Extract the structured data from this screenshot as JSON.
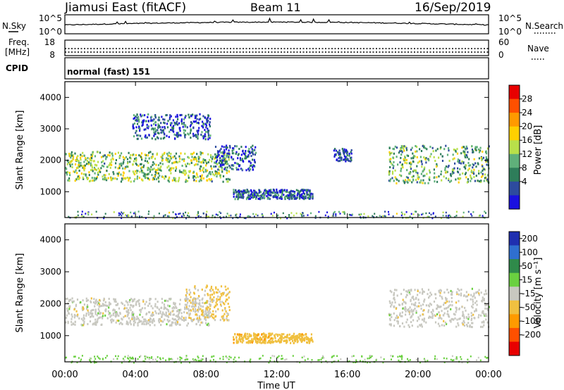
{
  "header": {
    "title_left": "Jiamusi East (fitACF)",
    "title_center": "Beam 11",
    "title_right": "16/Sep/2019"
  },
  "nsky": {
    "label": "N.Sky",
    "ticks_left": [
      "10^5",
      "10^0"
    ],
    "ticks_right": [
      "10^5",
      "10^0"
    ],
    "right_label": "N.Search"
  },
  "freq": {
    "label_line1": "Freq.",
    "label_line2": "[MHz]",
    "ticks_left": [
      "18",
      "8"
    ],
    "ticks_right": [
      "60",
      "0"
    ],
    "right_label": "Nave"
  },
  "cpid": {
    "label": "CPID",
    "text": "normal (fast) 151"
  },
  "power_panel": {
    "ylabel": "Slant Range [km]",
    "yticks": [
      "4000",
      "3000",
      "2000",
      "1000"
    ],
    "colorbar_label": "Power [dB]",
    "colorbar_ticks": [
      "28",
      "24",
      "20",
      "16",
      "12",
      "8",
      "4"
    ],
    "colorbar_colors": [
      "#e80000",
      "#ff5000",
      "#ff9a00",
      "#ffd000",
      "#b8e04a",
      "#5fb07a",
      "#2e7d5a",
      "#2d4b9e",
      "#1a10e0"
    ]
  },
  "velocity_panel": {
    "ylabel": "Slant Range [km]",
    "yticks": [
      "4000",
      "3000",
      "2000",
      "1000"
    ],
    "colorbar_label": "Velocity [m s⁻¹]",
    "colorbar_ticks": [
      "200",
      "100",
      "50",
      "15",
      "-15",
      "-50",
      "-100",
      "-200"
    ],
    "colorbar_colors": [
      "#1f2fb0",
      "#2f6fd0",
      "#2f8a4a",
      "#6ad040",
      "#c8c8c0",
      "#f0c040",
      "#ff9a00",
      "#ff5000",
      "#e80000"
    ]
  },
  "xaxis": {
    "ticks": [
      "00:00",
      "04:00",
      "08:00",
      "12:00",
      "16:00",
      "20:00",
      "00:00"
    ],
    "label": "Time UT"
  },
  "chart_data": {
    "type": "heatmap",
    "title": "Jiamusi East (fitACF)   Beam 11   16/Sep/2019",
    "xlabel": "Time UT",
    "ylabel": "Slant Range [km]",
    "xlim_hours": [
      0,
      24
    ],
    "ylim_km": [
      180,
      4500
    ],
    "panels": [
      {
        "name": "Power",
        "unit": "dB",
        "scale": [
          0,
          32
        ],
        "echo_bands": [
          {
            "t_start": 0.0,
            "t_end": 9.3,
            "range_start_km": 1350,
            "range_end_km": 2300,
            "typical_value": 14
          },
          {
            "t_start": 3.8,
            "t_end": 8.2,
            "range_start_km": 2700,
            "range_end_km": 3500,
            "typical_value": 6
          },
          {
            "t_start": 8.5,
            "t_end": 10.8,
            "range_start_km": 1700,
            "range_end_km": 2500,
            "typical_value": 6
          },
          {
            "t_start": 9.5,
            "t_end": 14.0,
            "range_start_km": 800,
            "range_end_km": 1100,
            "typical_value": 6
          },
          {
            "t_start": 15.2,
            "t_end": 16.2,
            "range_start_km": 2000,
            "range_end_km": 2400,
            "typical_value": 5
          },
          {
            "t_start": 18.3,
            "t_end": 24.0,
            "range_start_km": 1300,
            "range_end_km": 2500,
            "typical_value": 12
          }
        ]
      },
      {
        "name": "Velocity",
        "unit": "m s-1",
        "scale": [
          -250,
          250
        ],
        "echo_bands": [
          {
            "t_start": 0.0,
            "t_end": 8.2,
            "range_start_km": 1350,
            "range_end_km": 2200,
            "typical_value": 0
          },
          {
            "t_start": 6.8,
            "t_end": 9.3,
            "range_start_km": 1500,
            "range_end_km": 2600,
            "typical_value": -40
          },
          {
            "t_start": 9.5,
            "t_end": 14.0,
            "range_start_km": 800,
            "range_end_km": 1100,
            "typical_value": -60
          },
          {
            "t_start": 18.3,
            "t_end": 24.0,
            "range_start_km": 1300,
            "range_end_km": 2500,
            "typical_value": 0
          }
        ]
      }
    ]
  }
}
